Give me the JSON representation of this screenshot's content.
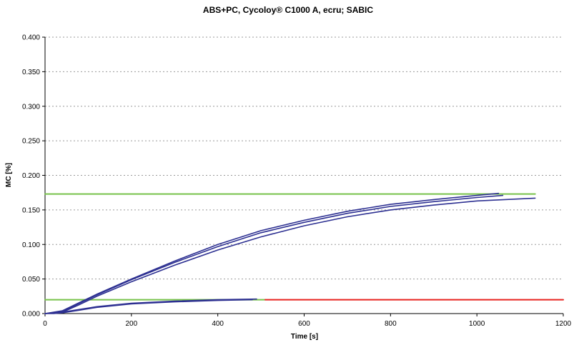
{
  "chart_data": {
    "type": "line",
    "title": "ABS+PC, Cycoloy® C1000 A, ecru; SABIC",
    "xlabel": "Time [s]",
    "ylabel": "MC [%]",
    "xlim": [
      0,
      1200
    ],
    "ylim": [
      0,
      0.4
    ],
    "x_ticks": [
      "0",
      "200",
      "400",
      "600",
      "800",
      "1000",
      "1200"
    ],
    "y_ticks": [
      "0.000",
      "0.050",
      "0.100",
      "0.150",
      "0.200",
      "0.250",
      "0.300",
      "0.350",
      "0.400"
    ],
    "grid": "horizontal dotted",
    "colors": {
      "measured": "#2e3192",
      "reference_high": "#77c24a",
      "reference_low": "#77c24a",
      "end_segment": "#e8231f"
    },
    "series": [
      {
        "role": "measured",
        "x": [
          0,
          20,
          40,
          80,
          120,
          200,
          300,
          400,
          500,
          600,
          700,
          800,
          900,
          1000,
          1050
        ],
        "y": [
          0.0,
          0.002,
          0.004,
          0.016,
          0.028,
          0.05,
          0.076,
          0.1,
          0.12,
          0.135,
          0.148,
          0.158,
          0.165,
          0.171,
          0.174
        ]
      },
      {
        "role": "measured",
        "x": [
          0,
          20,
          40,
          80,
          120,
          200,
          300,
          400,
          500,
          600,
          700,
          800,
          900,
          1000,
          1060
        ],
        "y": [
          0.0,
          0.001,
          0.003,
          0.015,
          0.027,
          0.049,
          0.074,
          0.097,
          0.117,
          0.132,
          0.145,
          0.155,
          0.162,
          0.168,
          0.171
        ]
      },
      {
        "role": "measured",
        "x": [
          0,
          20,
          40,
          80,
          120,
          200,
          300,
          400,
          500,
          600,
          700,
          800,
          900,
          1000,
          1100,
          1135
        ],
        "y": [
          0.0,
          0.001,
          0.002,
          0.013,
          0.025,
          0.046,
          0.07,
          0.092,
          0.111,
          0.127,
          0.14,
          0.15,
          0.157,
          0.163,
          0.166,
          0.167
        ]
      },
      {
        "role": "measured",
        "x": [
          0,
          20,
          40,
          80,
          120,
          200,
          300,
          400,
          490
        ],
        "y": [
          0.0,
          0.001,
          0.002,
          0.006,
          0.01,
          0.015,
          0.018,
          0.02,
          0.021
        ]
      },
      {
        "role": "measured",
        "x": [
          0,
          20,
          40,
          80,
          120,
          200,
          300,
          400,
          480
        ],
        "y": [
          0.0,
          0.0,
          0.001,
          0.005,
          0.009,
          0.014,
          0.017,
          0.019,
          0.02
        ]
      },
      {
        "role": "reference_high",
        "x": [
          0,
          1135
        ],
        "y": [
          0.173,
          0.173
        ]
      },
      {
        "role": "reference_low",
        "x": [
          0,
          510
        ],
        "y": [
          0.02,
          0.02
        ]
      },
      {
        "role": "end_segment",
        "x": [
          510,
          1200
        ],
        "y": [
          0.02,
          0.02
        ]
      }
    ]
  }
}
